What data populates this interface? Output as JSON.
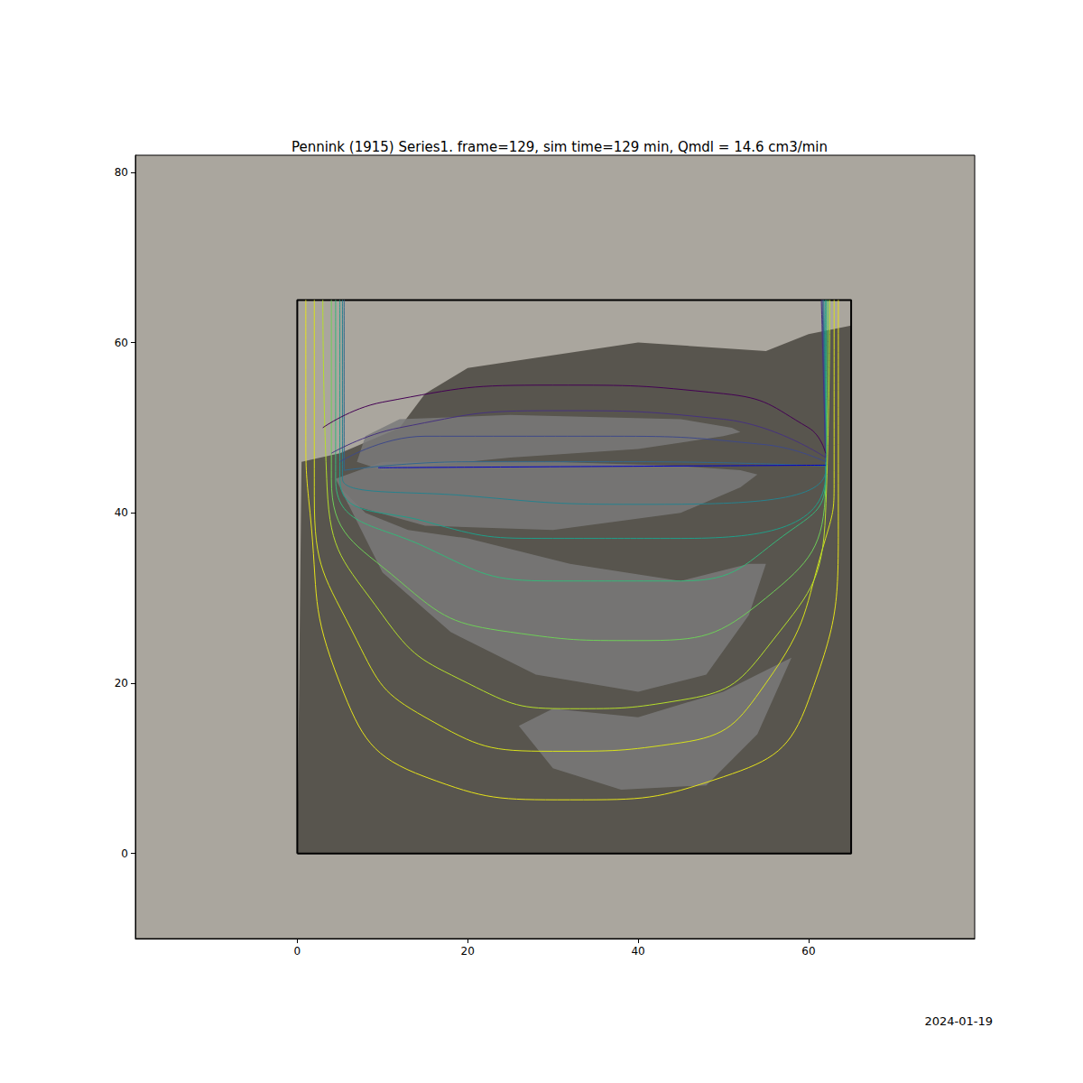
{
  "chart_data": {
    "type": "line",
    "title": "Pennink (1915) Series1. frame=129, sim time=129 min, Qmdl = 14.6 cm3/min",
    "footer": "2024-01-19",
    "xlim": [
      -19,
      79.5
    ],
    "ylim": [
      -10,
      82
    ],
    "xticks": [
      0,
      20,
      40,
      60
    ],
    "yticks": [
      0,
      20,
      40,
      60,
      80
    ],
    "grid": false,
    "series": [
      {
        "type": "polygon",
        "color": "#4a4640",
        "x": [
          0,
          0.5,
          5,
          12,
          15,
          20,
          40,
          55,
          60,
          65,
          65
        ],
        "values": [
          0,
          46,
          47,
          50,
          54,
          57,
          60,
          59,
          61,
          62,
          0
        ]
      },
      {
        "type": "polygon",
        "color": "#7a7a7a",
        "x": [
          7,
          8,
          12,
          25,
          45,
          51,
          52,
          50,
          40,
          25,
          10
        ],
        "values": [
          46,
          49,
          51,
          51.5,
          51,
          50,
          49.5,
          49,
          47.5,
          46.5,
          45
        ]
      },
      {
        "type": "polygon",
        "color": "#7a7a7a",
        "x": [
          4.5,
          10,
          30,
          45,
          52,
          54,
          52,
          45,
          30,
          15,
          6
        ],
        "values": [
          44,
          46,
          46,
          45.5,
          45,
          44.5,
          43,
          40,
          38,
          38.5,
          41
        ]
      },
      {
        "type": "polygon",
        "color": "#7a7a7a",
        "x": [
          5,
          10,
          18,
          28,
          40,
          48,
          53,
          55,
          53,
          45,
          32,
          20,
          13,
          8
        ],
        "values": [
          43,
          33,
          26,
          21,
          19,
          21,
          28,
          34,
          34,
          32,
          34,
          37,
          38,
          40
        ]
      },
      {
        "type": "polygon",
        "color": "#7a7a7a",
        "x": [
          26,
          30,
          38,
          48,
          54,
          58,
          56,
          50,
          40,
          30
        ],
        "values": [
          15,
          10,
          7.5,
          8,
          14,
          23,
          22,
          19,
          16,
          17
        ]
      },
      {
        "type": "line",
        "color": "#000000",
        "x": [
          0,
          65,
          65,
          0,
          0
        ],
        "values": [
          0,
          0,
          65,
          65,
          0
        ]
      },
      {
        "type": "line",
        "color": "#e6e31a",
        "x": [
          1,
          1,
          1.5,
          5,
          15,
          32,
          50,
          60,
          63.5,
          63.5
        ],
        "values": [
          65,
          50,
          40,
          20,
          9,
          6.3,
          9,
          18,
          40,
          65
        ]
      },
      {
        "type": "line",
        "color": "#d8e219",
        "x": [
          2,
          2,
          7,
          15,
          30,
          45,
          55,
          62,
          63,
          63
        ],
        "values": [
          65,
          42,
          25,
          16,
          12,
          13,
          20,
          37,
          44,
          65
        ]
      },
      {
        "type": "line",
        "color": "#b5de2b",
        "x": [
          3,
          3.5,
          10,
          20,
          32,
          45,
          55,
          62,
          62.5
        ],
        "values": [
          65,
          43,
          28,
          20,
          17,
          18,
          24,
          40,
          65
        ]
      },
      {
        "type": "line",
        "color": "#6ece58",
        "x": [
          4,
          4,
          12,
          25,
          40,
          55,
          62,
          62.3
        ],
        "values": [
          65,
          44,
          32,
          26,
          25,
          30,
          43,
          65
        ]
      },
      {
        "type": "line",
        "color": "#35b779",
        "x": [
          4.5,
          4.5,
          15,
          30,
          45,
          58,
          62,
          62.1
        ],
        "values": [
          65,
          44,
          36,
          32,
          32,
          38,
          44,
          65
        ]
      },
      {
        "type": "line",
        "color": "#1f9e89",
        "x": [
          5,
          5,
          15,
          30,
          45,
          62,
          62
        ],
        "values": [
          65,
          44,
          39,
          37,
          37,
          44.5,
          65
        ]
      },
      {
        "type": "line",
        "color": "#26828e",
        "x": [
          5.3,
          5.3,
          20,
          40,
          62,
          61.8
        ],
        "values": [
          65,
          44,
          42,
          41,
          45,
          65
        ]
      },
      {
        "type": "line",
        "color": "#31688e",
        "x": [
          5.5,
          5.5,
          20,
          40,
          62,
          61.7
        ],
        "values": [
          65,
          45,
          46,
          46,
          45.5,
          65
        ]
      },
      {
        "type": "line",
        "color": "#3e4989",
        "x": [
          5,
          15,
          35,
          55,
          62,
          61.6
        ],
        "values": [
          46,
          49,
          49,
          48,
          46,
          65
        ]
      },
      {
        "type": "line",
        "color": "#46327e",
        "x": [
          4,
          12,
          30,
          50,
          62,
          61.5
        ],
        "values": [
          47,
          50,
          52,
          51,
          46.5,
          65
        ]
      },
      {
        "type": "line",
        "color": "#440154",
        "x": [
          3,
          10,
          30,
          50,
          60,
          62
        ],
        "values": [
          50,
          53,
          55,
          54,
          50,
          47
        ]
      },
      {
        "type": "line",
        "color": "#0000cc",
        "x": [
          9.5,
          62
        ],
        "values": [
          45.3,
          45.6
        ]
      }
    ]
  }
}
